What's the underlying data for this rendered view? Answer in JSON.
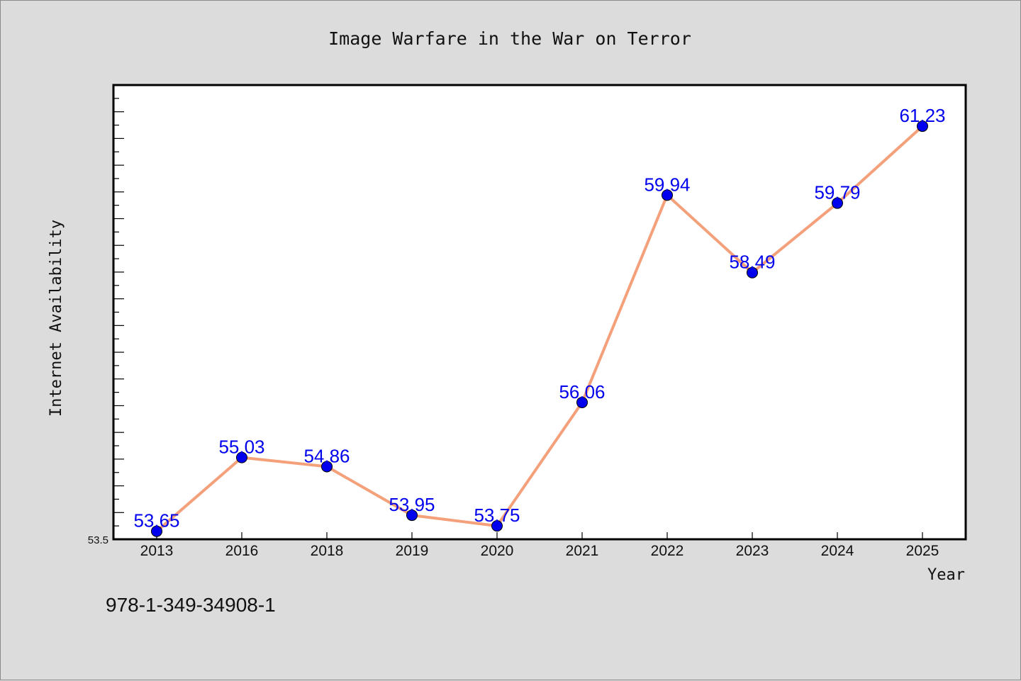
{
  "chart_data": {
    "type": "line",
    "title": "Image Warfare in the War on Terror",
    "xlabel": "Year",
    "ylabel": "Internet Availability",
    "categories": [
      "2013",
      "2016",
      "2018",
      "2019",
      "2020",
      "2021",
      "2022",
      "2023",
      "2024",
      "2025"
    ],
    "series": [
      {
        "values": [
          53.65,
          55.03,
          54.86,
          53.95,
          53.75,
          56.06,
          59.94,
          58.49,
          59.79,
          61.23
        ],
        "data_labels": [
          "53.65",
          "55.03",
          "54.86",
          "53.95",
          "53.75",
          "56.06",
          "59.94",
          "58.49",
          "59.79",
          "61.23"
        ],
        "line_color": "#f4a07a",
        "marker_color": "#0000ee"
      }
    ],
    "ylim": [
      53.5,
      62.0
    ],
    "ytick_labels": [
      "53.5"
    ],
    "grid": false,
    "legend": "none"
  },
  "footer": {
    "isbn": "978-1-349-34908-1"
  },
  "colors": {
    "background": "#dcdcdc",
    "plot_background": "#ffffff",
    "line": "#f4a07a",
    "marker": "#0000ee",
    "data_label": "#0000ee"
  }
}
